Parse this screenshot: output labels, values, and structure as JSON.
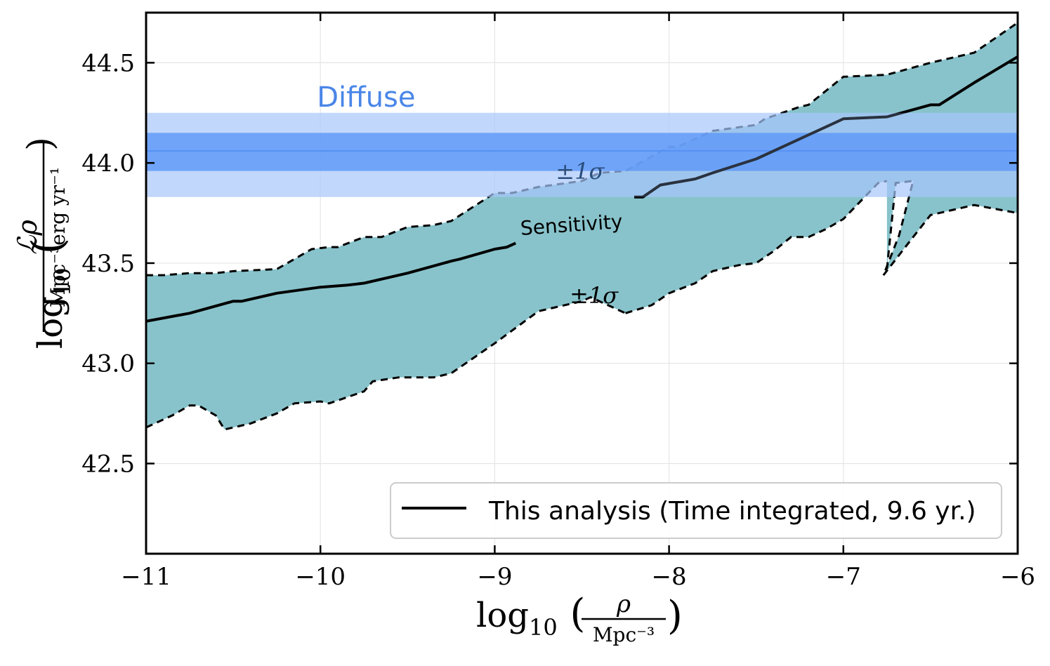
{
  "chart_data": {
    "type": "area",
    "xlabel": "log10 (ρ / Mpc^-3)",
    "ylabel": "log10 (ℒρ / Mpc^-3 erg yr^-1)",
    "xlim": [
      -11,
      -6
    ],
    "ylim": [
      42.05,
      44.75
    ],
    "x_ticks": [
      -11,
      -10,
      -9,
      -8,
      -7,
      -6
    ],
    "x_tick_labels": [
      "−11",
      "−10",
      "−9",
      "−8",
      "−7",
      "−6"
    ],
    "y_ticks": [
      42.5,
      43.0,
      43.5,
      44.0,
      44.5
    ],
    "y_tick_labels": [
      "42.5",
      "43.0",
      "43.5",
      "44.0",
      "44.5"
    ],
    "grid": true,
    "legend_position": "lower-right",
    "colors": {
      "band": "#88c3cb",
      "diffuse_inner": "#4a8cf7",
      "diffuse_outer": "#a9c6fb",
      "diffuse_text": "#4a86e8",
      "line": "#000000"
    },
    "series": [
      {
        "name": "This analysis (Time integrated, 9.6 yr.)",
        "role": "sensitivity",
        "x": [
          -11.0,
          -10.75,
          -10.5,
          -10.45,
          -10.25,
          -10.0,
          -9.85,
          -9.75,
          -9.55,
          -9.5,
          -9.25,
          -9.2,
          -9.0,
          -8.93,
          -8.88,
          -8.2,
          -8.15,
          -8.05,
          -7.85,
          -7.75,
          -7.5,
          -7.25,
          -7.1,
          -7.0,
          -6.75,
          -6.5,
          -6.45,
          -6.25,
          -6.0
        ],
        "y": [
          43.21,
          43.25,
          43.31,
          43.31,
          43.35,
          43.38,
          43.39,
          43.4,
          43.44,
          43.45,
          43.51,
          43.52,
          43.57,
          43.58,
          43.6,
          43.83,
          43.83,
          43.89,
          43.92,
          43.95,
          44.02,
          44.12,
          44.18,
          44.22,
          44.23,
          44.29,
          44.29,
          44.4,
          44.53
        ]
      }
    ],
    "upper_band": {
      "x": [
        -11.0,
        -10.9,
        -10.75,
        -10.6,
        -10.5,
        -10.25,
        -10.05,
        -9.95,
        -9.9,
        -9.75,
        -9.65,
        -9.5,
        -9.35,
        -9.25,
        -9.0,
        -8.9,
        -8.75,
        -8.5,
        -8.4,
        -8.25,
        -8.0,
        -7.95,
        -7.75,
        -7.5,
        -7.45,
        -7.25,
        -7.2,
        -7.0,
        -6.75,
        -6.5,
        -6.35,
        -6.25,
        -6.0
      ],
      "y": [
        43.44,
        43.44,
        43.45,
        43.45,
        43.46,
        43.47,
        43.57,
        43.58,
        43.58,
        43.63,
        43.63,
        43.68,
        43.69,
        43.71,
        43.85,
        43.85,
        43.88,
        43.91,
        43.95,
        43.96,
        44.08,
        44.08,
        44.16,
        44.19,
        44.22,
        44.28,
        44.29,
        44.43,
        44.44,
        44.5,
        44.53,
        44.55,
        44.7
      ]
    },
    "lower_band_a": {
      "x": [
        -11.0,
        -10.85,
        -10.75,
        -10.7,
        -10.6,
        -10.55,
        -10.4,
        -10.25,
        -10.15,
        -10.0,
        -9.95,
        -9.75,
        -9.7,
        -9.55,
        -9.35,
        -9.25,
        -9.0,
        -8.75,
        -8.6,
        -8.5,
        -8.45,
        -8.35,
        -8.25
      ],
      "y": [
        42.68,
        42.74,
        42.79,
        42.79,
        42.74,
        42.67,
        42.7,
        42.75,
        42.8,
        42.81,
        42.8,
        42.86,
        42.91,
        42.93,
        42.93,
        42.95,
        43.1,
        43.26,
        43.29,
        43.31,
        43.33,
        43.29,
        43.25
      ]
    },
    "lower_band_b": {
      "x": [
        -8.25,
        -8.1,
        -8.0,
        -7.85,
        -7.75,
        -7.6,
        -7.5,
        -7.4,
        -7.3,
        -7.2,
        -7.1,
        -7.0,
        -6.9,
        -6.8,
        -6.75
      ],
      "y": [
        43.25,
        43.29,
        43.35,
        43.4,
        43.46,
        43.49,
        43.5,
        43.56,
        43.63,
        43.63,
        43.67,
        43.72,
        43.81,
        43.9,
        43.91
      ]
    },
    "lower_band_spike": {
      "x": [
        -6.75,
        -6.7,
        -6.6,
        -6.68,
        -6.77,
        -6.6,
        -6.5,
        -6.25,
        -6.0
      ],
      "y": [
        43.47,
        43.9,
        43.91,
        43.64,
        43.44,
        43.63,
        43.74,
        43.79,
        43.75
      ]
    },
    "diffuse": {
      "label": "Diffuse",
      "center": 44.06,
      "inner": [
        43.96,
        44.15
      ],
      "outer": [
        43.83,
        44.25
      ]
    },
    "annotations": [
      {
        "text": "Sensitivity",
        "x": -8.85,
        "y": 43.64,
        "rotation": -4
      },
      {
        "text": "±1σ",
        "x": -8.65,
        "y": 43.92
      },
      {
        "text": "±1σ",
        "x": -8.57,
        "y": 43.3
      }
    ]
  }
}
